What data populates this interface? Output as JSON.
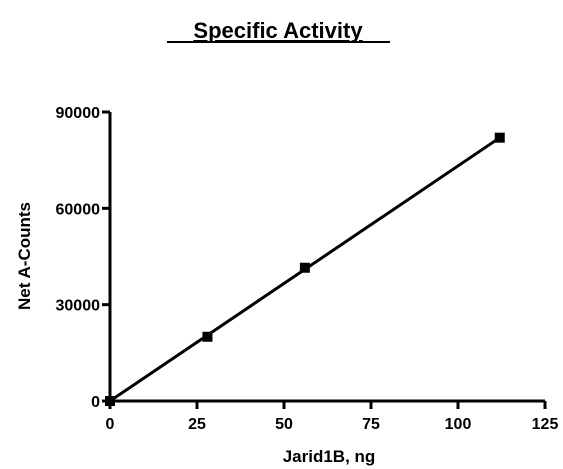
{
  "chart_data": {
    "type": "scatter",
    "title": "Specific Activity",
    "xlabel": "Jarid1B, ng",
    "ylabel": "Net A-Counts",
    "xlim": [
      0,
      125
    ],
    "ylim": [
      0,
      90000
    ],
    "x_ticks": [
      0,
      25,
      50,
      75,
      100,
      125
    ],
    "y_ticks": [
      0,
      30000,
      60000,
      90000
    ],
    "x_tick_labels": [
      "0",
      "25",
      "50",
      "75",
      "100",
      "125"
    ],
    "y_tick_labels": [
      "0",
      "30000",
      "60000",
      "90000"
    ],
    "grid": false,
    "legend": "none",
    "marker": "square",
    "series": [
      {
        "x": [
          0,
          28,
          56,
          112
        ],
        "y": [
          0,
          20000,
          41500,
          82000
        ],
        "color": "#000000"
      }
    ],
    "fit_line": {
      "type": "linear",
      "x_range": [
        0,
        112
      ],
      "y_range": [
        0,
        82000
      ]
    }
  }
}
